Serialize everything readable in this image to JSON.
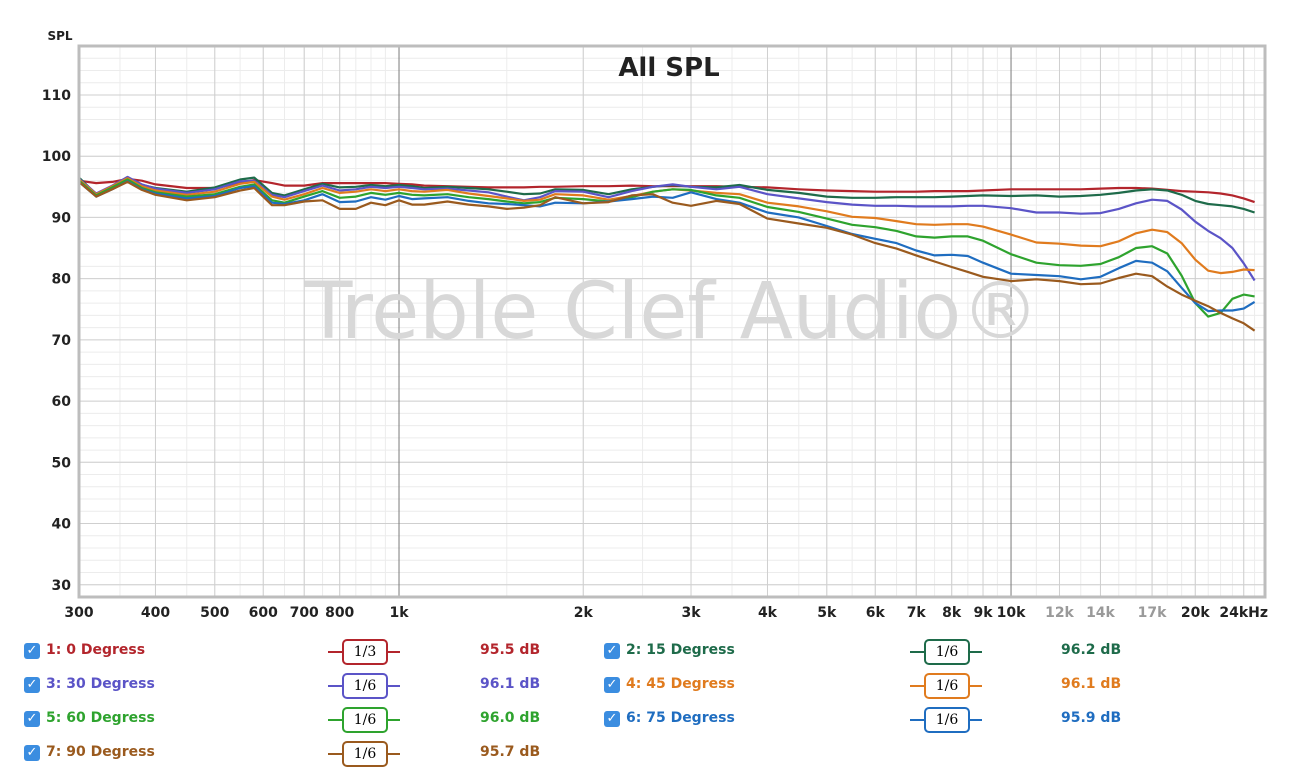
{
  "chart_data": {
    "type": "line",
    "title": "All SPL",
    "ylabel": "SPL",
    "xlabel": "",
    "x_scale": "log",
    "xlim": [
      300,
      26000
    ],
    "ylim": [
      28,
      118
    ],
    "grid": true,
    "watermark": "Treble Clef Audio®",
    "x_ticks": [
      {
        "v": 300,
        "label": "300"
      },
      {
        "v": 400,
        "label": "400"
      },
      {
        "v": 500,
        "label": "500"
      },
      {
        "v": 600,
        "label": "600"
      },
      {
        "v": 700,
        "label": "700"
      },
      {
        "v": 800,
        "label": "800"
      },
      {
        "v": 1000,
        "label": "1k"
      },
      {
        "v": 2000,
        "label": "2k"
      },
      {
        "v": 3000,
        "label": "3k"
      },
      {
        "v": 4000,
        "label": "4k"
      },
      {
        "v": 5000,
        "label": "5k"
      },
      {
        "v": 6000,
        "label": "6k"
      },
      {
        "v": 7000,
        "label": "7k"
      },
      {
        "v": 8000,
        "label": "8k"
      },
      {
        "v": 9000,
        "label": "9k"
      },
      {
        "v": 10000,
        "label": "10k"
      },
      {
        "v": 12000,
        "label": "12k",
        "muted": true
      },
      {
        "v": 14000,
        "label": "14k",
        "muted": true
      },
      {
        "v": 17000,
        "label": "17k",
        "muted": true
      },
      {
        "v": 20000,
        "label": "20k"
      },
      {
        "v": 24000,
        "label": "24kHz"
      }
    ],
    "y_ticks": [
      30,
      40,
      50,
      60,
      70,
      80,
      90,
      100,
      110
    ],
    "x": [
      300,
      320,
      340,
      360,
      380,
      400,
      450,
      500,
      550,
      580,
      620,
      650,
      700,
      750,
      800,
      850,
      900,
      950,
      1000,
      1050,
      1100,
      1200,
      1300,
      1400,
      1500,
      1600,
      1700,
      1800,
      2000,
      2200,
      2400,
      2600,
      2800,
      3000,
      3300,
      3600,
      4000,
      4500,
      5000,
      5500,
      6000,
      6500,
      7000,
      7500,
      8000,
      8500,
      9000,
      10000,
      11000,
      12000,
      13000,
      14000,
      15000,
      16000,
      17000,
      18000,
      19000,
      20000,
      21000,
      22000,
      23000,
      24000,
      25000
    ],
    "series": [
      {
        "name": "1: 0 Degress",
        "color": "#b3252c",
        "smoothing": "1/3",
        "level": "95.5 dB",
        "values": [
          96,
          95.6,
          95.8,
          96.3,
          96,
          95.4,
          94.8,
          94.8,
          95.6,
          96.1,
          95.6,
          95.2,
          95.2,
          95.6,
          95.6,
          95.6,
          95.6,
          95.6,
          95.5,
          95.4,
          95.2,
          95.1,
          95,
          94.9,
          94.9,
          94.9,
          95,
          95,
          95.1,
          95.1,
          95.2,
          95.1,
          95.1,
          95.1,
          95.1,
          95,
          94.9,
          94.6,
          94.4,
          94.3,
          94.2,
          94.2,
          94.2,
          94.3,
          94.3,
          94.3,
          94.4,
          94.6,
          94.6,
          94.6,
          94.6,
          94.7,
          94.8,
          94.8,
          94.7,
          94.5,
          94.3,
          94.2,
          94.1,
          93.9,
          93.6,
          93.1,
          92.5
        ]
      },
      {
        "name": "2: 15 Degress",
        "color": "#1e6b4a",
        "smoothing": "1/6",
        "level": "96.2 dB",
        "values": [
          96.5,
          93.8,
          95,
          96.6,
          95.3,
          94.8,
          94.2,
          94.9,
          96.2,
          96.5,
          94,
          93.6,
          94.6,
          95.5,
          94.9,
          95,
          95.3,
          95.1,
          95.3,
          95.1,
          94.8,
          95,
          94.8,
          94.6,
          94.2,
          93.8,
          93.9,
          94.6,
          94.5,
          93.8,
          94.6,
          95,
          95.3,
          95,
          94.9,
          95.3,
          94.5,
          94,
          93.4,
          93.2,
          93.2,
          93.3,
          93.3,
          93.3,
          93.4,
          93.5,
          93.6,
          93.5,
          93.6,
          93.4,
          93.5,
          93.7,
          94,
          94.4,
          94.6,
          94.4,
          93.7,
          92.7,
          92.2,
          92,
          91.8,
          91.4,
          90.8
        ]
      },
      {
        "name": "3: 30 Degress",
        "color": "#5b54c7",
        "smoothing": "1/6",
        "level": "96.1 dB",
        "values": [
          96.3,
          93.9,
          95.2,
          96.6,
          95.4,
          94.7,
          94,
          94.6,
          95.9,
          96,
          93.7,
          93.3,
          94.3,
          95.2,
          94.4,
          94.6,
          95,
          94.8,
          95,
          94.8,
          94.6,
          94.7,
          94.4,
          94.1,
          93.4,
          92.8,
          93.3,
          94.3,
          94.2,
          93.3,
          94.3,
          95,
          95.4,
          95,
          94.6,
          95,
          93.8,
          93.1,
          92.5,
          92.1,
          91.9,
          91.9,
          91.8,
          91.8,
          91.8,
          91.9,
          91.9,
          91.5,
          90.8,
          90.8,
          90.6,
          90.7,
          91.4,
          92.3,
          92.9,
          92.7,
          91.3,
          89.3,
          87.8,
          86.6,
          85,
          82.5,
          79.7
        ]
      },
      {
        "name": "4: 45 Degress",
        "color": "#e07b1e",
        "smoothing": "1/6",
        "level": "96.1 dB",
        "values": [
          96.2,
          93.8,
          95.1,
          96.4,
          95.1,
          94.4,
          93.7,
          94.2,
          95.5,
          95.8,
          93.4,
          92.9,
          93.8,
          94.8,
          94,
          94.2,
          94.6,
          94.3,
          94.6,
          94.3,
          94.2,
          94.5,
          93.9,
          93.5,
          93.1,
          92.7,
          92.9,
          93.8,
          93.6,
          92.9,
          93.5,
          94.2,
          94.6,
          94.4,
          94,
          93.8,
          92.4,
          91.8,
          91,
          90.1,
          89.9,
          89.4,
          88.9,
          88.8,
          88.9,
          88.9,
          88.5,
          87.2,
          85.9,
          85.7,
          85.4,
          85.3,
          86.1,
          87.4,
          88,
          87.6,
          85.8,
          83.1,
          81.3,
          80.9,
          81.1,
          81.5,
          81.4
        ]
      },
      {
        "name": "5: 60 Degress",
        "color": "#2ea32e",
        "smoothing": "1/6",
        "level": "96.0 dB",
        "values": [
          96,
          93.6,
          94.9,
          96.2,
          94.8,
          94.1,
          93.4,
          93.8,
          95,
          95.4,
          92.8,
          92.4,
          93.4,
          94.3,
          93.2,
          93.4,
          94,
          93.7,
          94,
          93.7,
          93.6,
          93.8,
          93.3,
          93,
          92.6,
          92.3,
          92.5,
          93.2,
          93,
          92.6,
          93.3,
          94.2,
          94.6,
          94.5,
          93.6,
          93.2,
          91.7,
          90.9,
          89.8,
          88.8,
          88.4,
          87.8,
          86.9,
          86.7,
          86.9,
          86.9,
          86.2,
          84,
          82.6,
          82.2,
          82.1,
          82.4,
          83.5,
          85,
          85.3,
          84.1,
          80.5,
          76,
          73.8,
          74.4,
          76.7,
          77.4,
          77.1
        ]
      },
      {
        "name": "6: 75 Degress",
        "color": "#1f6dc0",
        "smoothing": "1/6",
        "level": "95.9 dB",
        "values": [
          95.8,
          93.4,
          94.6,
          95.9,
          94.6,
          93.9,
          93.1,
          93.5,
          94.8,
          95.1,
          92.4,
          92.2,
          92.8,
          93.8,
          92.5,
          92.6,
          93.3,
          92.9,
          93.5,
          93,
          93.1,
          93.3,
          92.7,
          92.3,
          92.2,
          92,
          91.8,
          92.4,
          92.3,
          92.6,
          93,
          93.4,
          93.2,
          94.1,
          93,
          92.4,
          90.8,
          90,
          88.6,
          87.3,
          86.5,
          85.8,
          84.6,
          83.8,
          83.9,
          83.7,
          82.6,
          80.8,
          80.6,
          80.4,
          79.9,
          80.3,
          81.7,
          82.9,
          82.6,
          81.2,
          78.5,
          76,
          74.7,
          74.8,
          74.8,
          75.1,
          76.2
        ]
      },
      {
        "name": "7: 90 Degress",
        "color": "#9a5a1e",
        "smoothing": "1/6",
        "level": "95.7 dB",
        "values": [
          95.8,
          93.4,
          94.6,
          95.8,
          94.5,
          93.7,
          92.8,
          93.3,
          94.4,
          94.8,
          92,
          92,
          92.6,
          92.8,
          91.4,
          91.4,
          92.4,
          92,
          92.8,
          92.1,
          92.1,
          92.6,
          92.1,
          91.8,
          91.4,
          91.6,
          92,
          93.3,
          92.3,
          92.5,
          93.6,
          93.8,
          92.4,
          91.9,
          92.7,
          92.2,
          89.8,
          89,
          88.3,
          87.2,
          85.8,
          84.9,
          83.8,
          82.8,
          81.9,
          81.1,
          80.3,
          79.6,
          79.9,
          79.6,
          79.1,
          79.2,
          80.1,
          80.8,
          80.4,
          78.7,
          77.4,
          76.4,
          75.5,
          74.4,
          73.5,
          72.7,
          71.5
        ]
      }
    ]
  },
  "legend_checkmark": "✓"
}
